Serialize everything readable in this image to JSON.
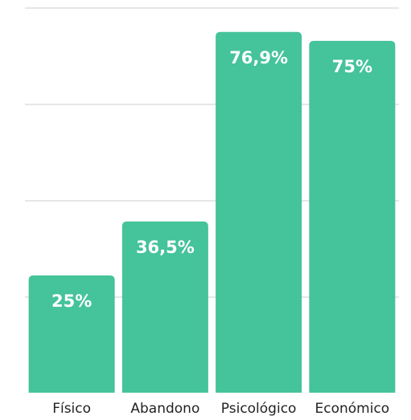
{
  "chart_data": {
    "type": "bar",
    "categories": [
      "Físico",
      "Abandono",
      "Psicológico",
      "Económico"
    ],
    "values": [
      25,
      36.5,
      76.9,
      75
    ],
    "data_labels": [
      "25%",
      "36,5%",
      "76,9%",
      "75%"
    ],
    "title": "",
    "xlabel": "",
    "ylabel": "",
    "ylim": [
      0,
      82
    ],
    "grid": true,
    "legend": "none",
    "bar_color": "#45c39a",
    "grid_color": "#cccccc"
  }
}
